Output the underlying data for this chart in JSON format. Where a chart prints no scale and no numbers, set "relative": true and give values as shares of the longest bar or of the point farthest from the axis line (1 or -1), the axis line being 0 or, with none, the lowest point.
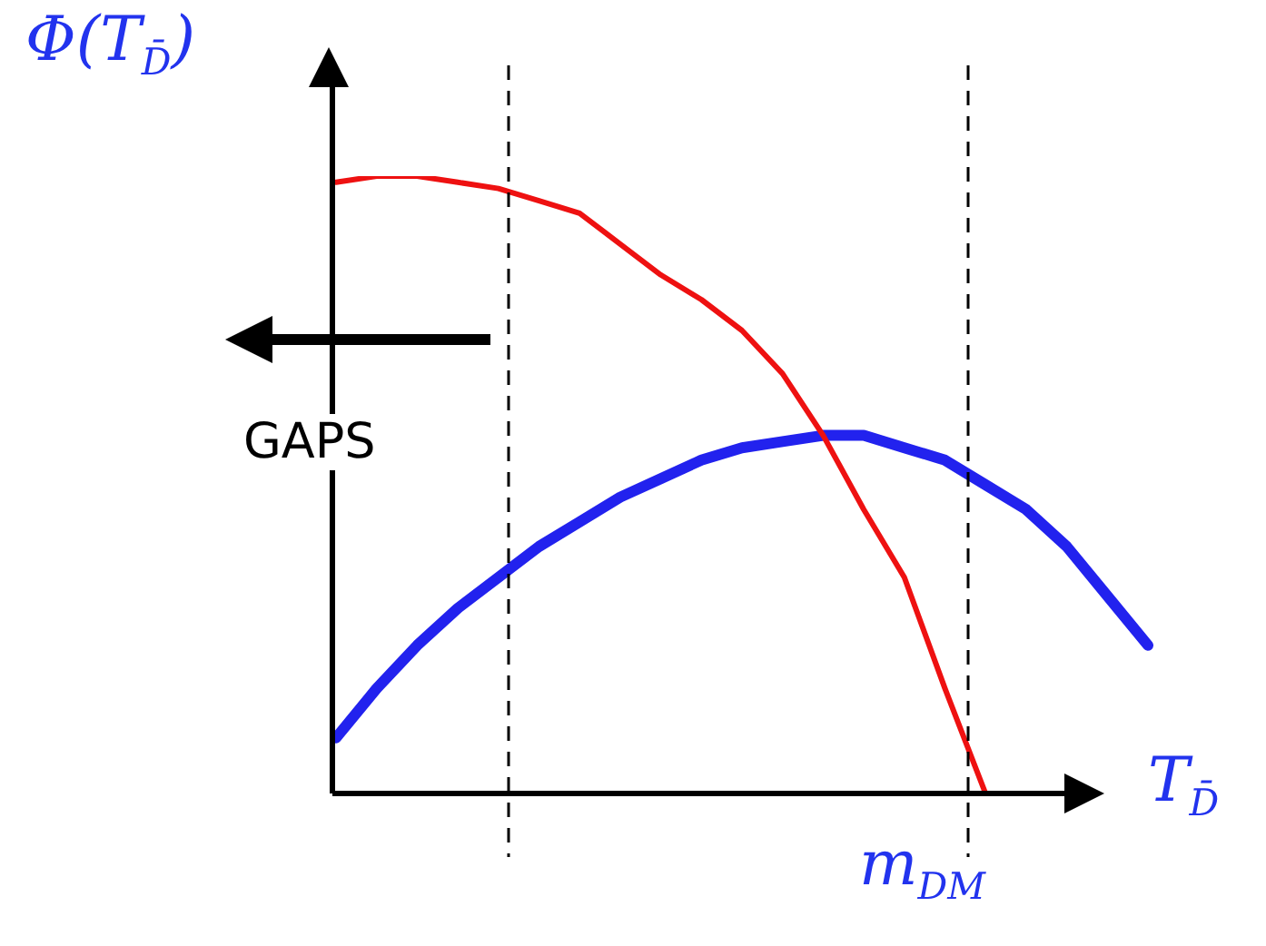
{
  "chart_data": {
    "type": "line",
    "relative": true,
    "xlabel": "T$_{D̄}$",
    "ylabel": "Φ(T$_{D̄}$)",
    "categories": [
      null,
      null,
      null,
      null,
      null,
      null,
      null,
      null,
      null,
      null,
      null,
      null,
      null,
      null,
      null,
      null,
      null,
      null,
      null,
      null,
      null
    ],
    "series": [
      {
        "color": "#ee1111",
        "values": [
          0.99,
          1.0,
          1.0,
          0.99,
          0.98,
          0.96,
          0.94,
          0.89,
          0.84,
          0.8,
          0.75,
          0.68,
          0.58,
          0.46,
          0.35,
          0.17,
          0,
          null,
          null,
          null,
          null
        ]
      },
      {
        "color": "#2222ee",
        "values": [
          0.09,
          0.17,
          0.24,
          0.3,
          0.35,
          0.4,
          0.44,
          0.48,
          0.51,
          0.54,
          0.56,
          0.57,
          0.58,
          0.58,
          0.56,
          0.54,
          0.5,
          0.46,
          0.4,
          0.32,
          0.24
        ]
      }
    ],
    "annotations": [
      "GAPS",
      "m$_{DM}$"
    ],
    "marker": "none",
    "grid": false,
    "legend": false
  }
}
